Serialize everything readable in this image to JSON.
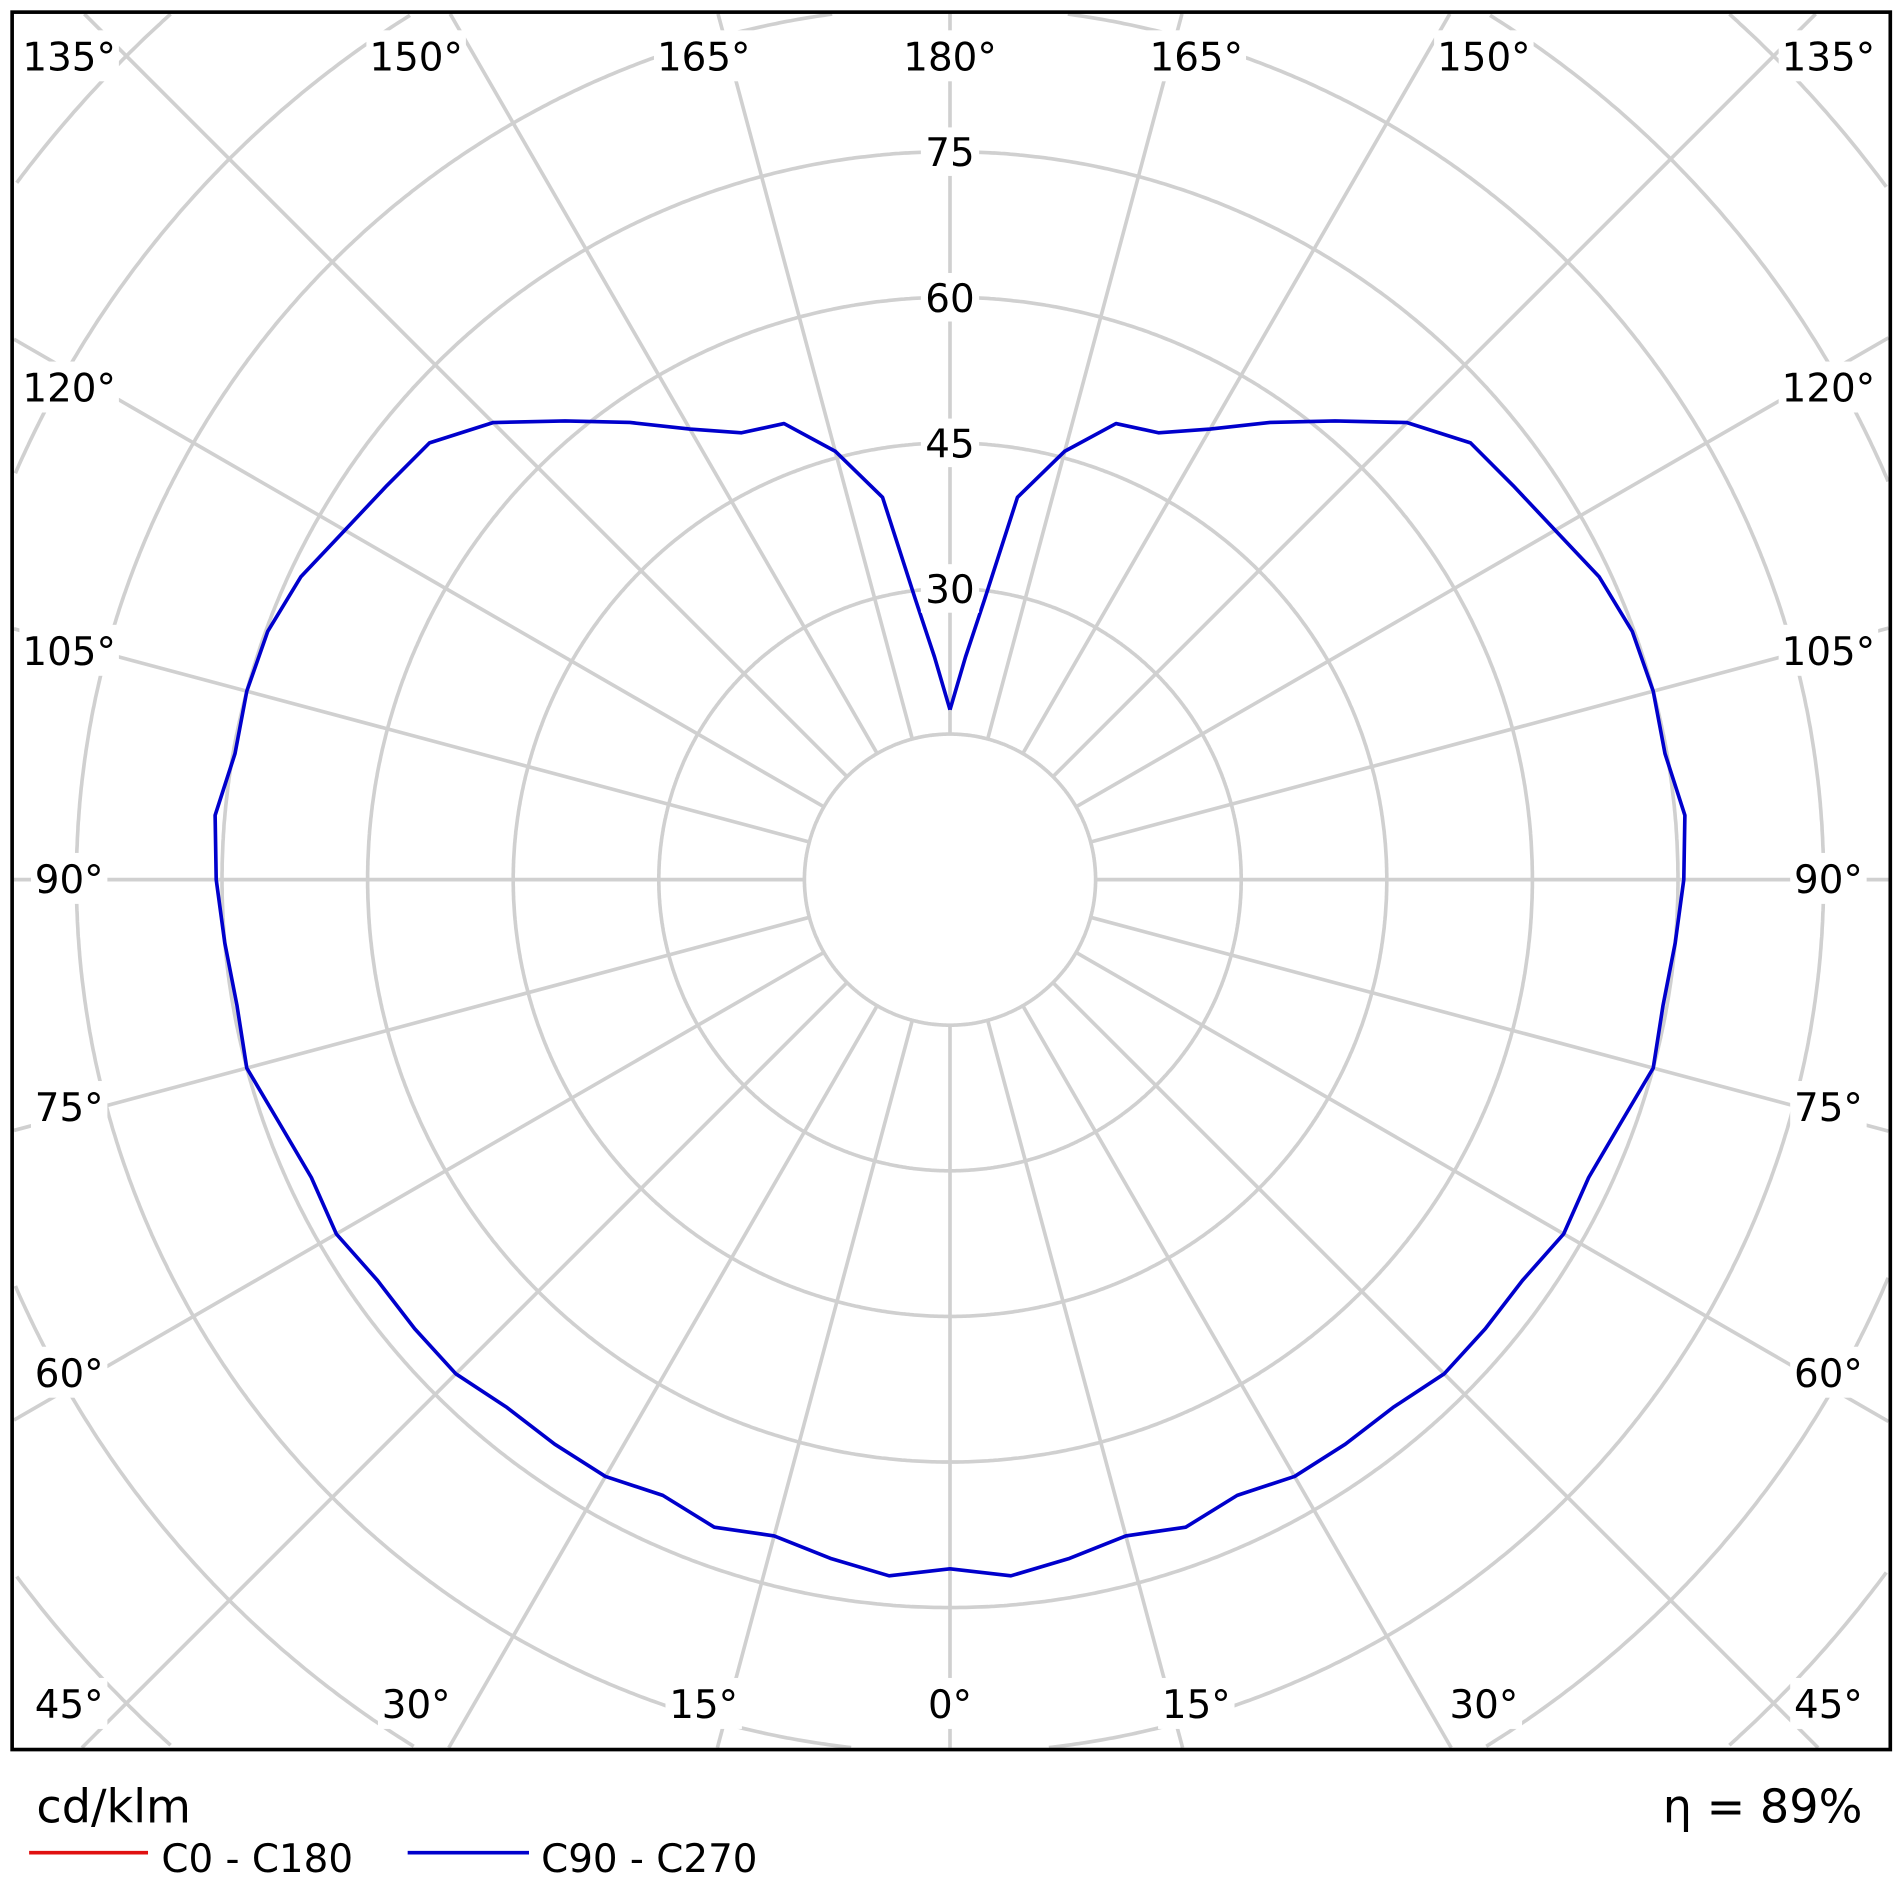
{
  "chart_data": {
    "type": "polar",
    "unit_label": "cd/klm",
    "efficiency_label": "η = 89%",
    "radial_ticks": [
      30,
      45,
      60,
      75
    ],
    "radial_grid_step": 15,
    "angle_step": 15,
    "grid": true,
    "legend_placement": "bottom-left",
    "angle_labels": {
      "top": [
        "135°",
        "150°",
        "165°",
        "180°",
        "165°",
        "150°",
        "135°"
      ],
      "left": [
        "120°",
        "105°",
        "90°",
        "75°",
        "60°"
      ],
      "right": [
        "120°",
        "105°",
        "90°",
        "75°",
        "60°"
      ],
      "bottom": [
        "45°",
        "30°",
        "15°",
        "0°",
        "15°",
        "30°",
        "45°"
      ]
    },
    "series": [
      {
        "name": "C0 - C180",
        "color": "#e01010",
        "gamma": [],
        "values": []
      },
      {
        "name": "C90 - C270",
        "color": "#0000cc",
        "gamma": [
          0,
          5,
          10,
          15,
          20,
          25,
          30,
          35,
          40,
          45,
          50,
          55,
          60,
          65,
          70,
          75,
          80,
          85,
          90,
          95,
          100,
          105,
          110,
          115,
          120,
          125,
          130,
          135,
          140,
          145,
          150,
          155,
          160,
          165,
          170,
          173,
          176,
          180
        ],
        "values": [
          71,
          72,
          71,
          70,
          71,
          70,
          71,
          71,
          71,
          72,
          72,
          72,
          73,
          72.6,
          73.5,
          75,
          74.6,
          75,
          75.6,
          76,
          74.8,
          75,
          74.8,
          73.8,
          72,
          70.8,
          70,
          66.6,
          61.7,
          57.5,
          53.6,
          50.8,
          50,
          45.7,
          40,
          29,
          23,
          17.5
        ]
      }
    ]
  }
}
